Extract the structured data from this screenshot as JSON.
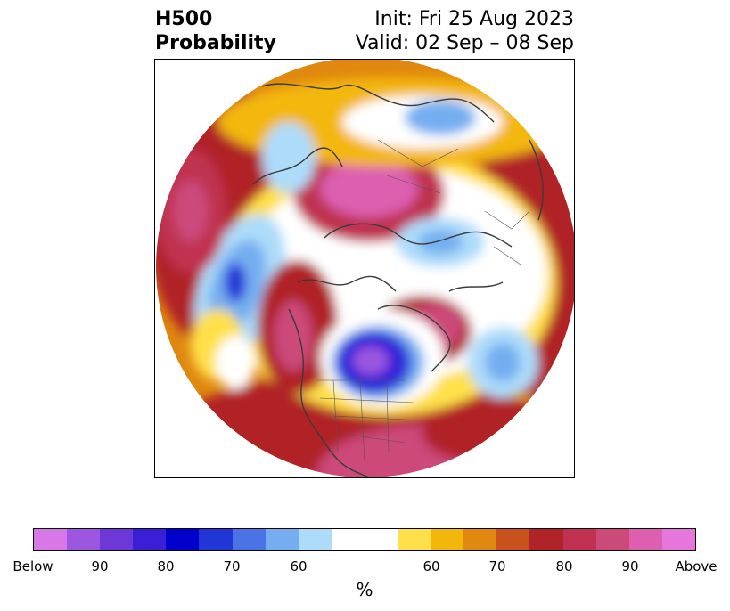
{
  "title": {
    "left_line1": "H500",
    "left_line2": "Probability",
    "right_line1": "Init: Fri 25 Aug 2023",
    "right_line2": "Valid: 02 Sep – 08 Sep"
  },
  "colorbar": {
    "unit": "%",
    "colors": [
      "#d877e8",
      "#9b57e0",
      "#6e38d8",
      "#3a1fd6",
      "#0000cc",
      "#2236d8",
      "#4a73e6",
      "#74aef0",
      "#addcfa",
      "#ffffff",
      "#ffffff",
      "#ffe04a",
      "#f3b709",
      "#e08810",
      "#c9521c",
      "#b02428",
      "#c03050",
      "#cc4a7a",
      "#dc5fb0",
      "#e676dc"
    ],
    "labels": [
      "Below",
      "90",
      "80",
      "70",
      "60",
      "60",
      "70",
      "80",
      "90",
      "Above"
    ]
  },
  "map": {
    "projection": "north-polar-stereographic",
    "features": [
      {
        "name": "above-normal-west-pacific",
        "category": "Above 90"
      },
      {
        "name": "below-normal-northeast-pacific",
        "category": "Below 80"
      },
      {
        "name": "above-normal-siberia-arctic",
        "category": "Above 90"
      },
      {
        "name": "below-normal-canada-great-lakes",
        "category": "Below 90"
      },
      {
        "name": "above-normal-north-atlantic",
        "category": "Above 80"
      },
      {
        "name": "below-normal-mid-atlantic",
        "category": "Below 60"
      },
      {
        "name": "below-normal-scandinavia",
        "category": "Below 60"
      }
    ]
  }
}
